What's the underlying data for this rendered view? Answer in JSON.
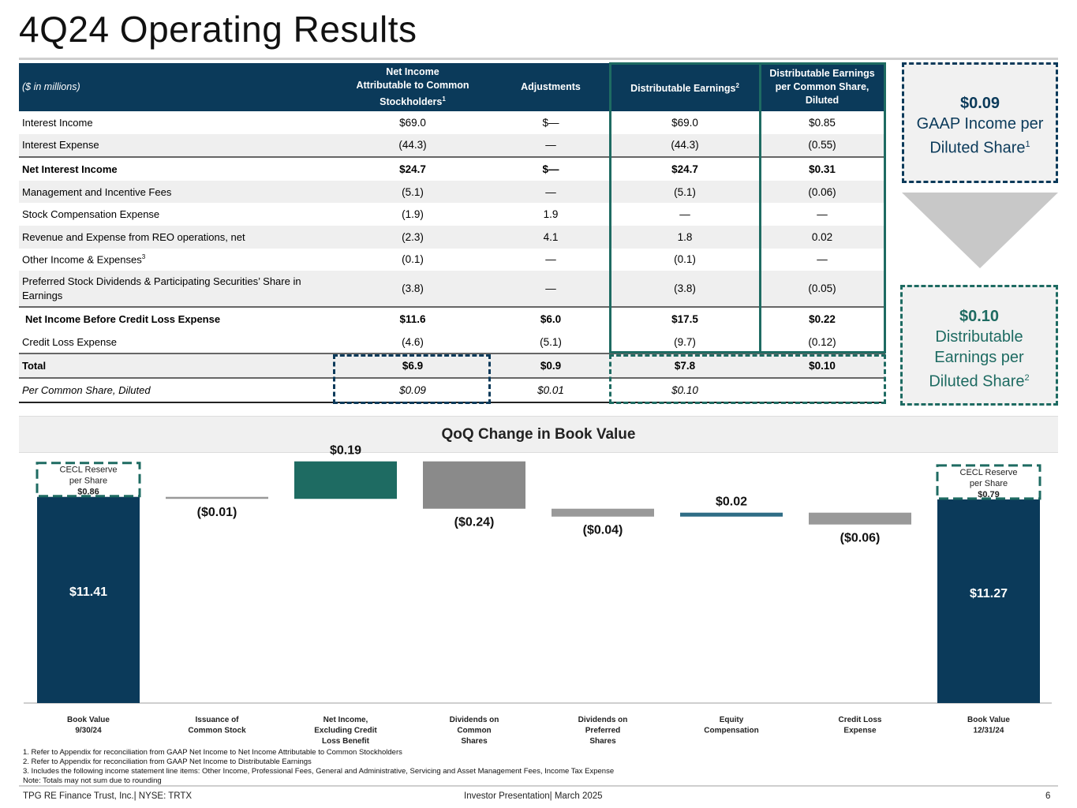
{
  "page": {
    "title": "4Q24 Operating Results",
    "page_number": "6",
    "footer_left": "TPG RE Finance Trust, Inc.| NYSE: TRTX",
    "footer_center": "Investor Presentation| March 2025"
  },
  "table": {
    "header_label": "($ in millions)",
    "col1_line1": "Net Income",
    "col1_line2": "Attributable to Common",
    "col1_line3": "Stockholders",
    "col1_sup": "1",
    "col2": "Adjustments",
    "col3": "Distributable Earnings",
    "col3_sup": "2",
    "col4_line1": "Distributable Earnings",
    "col4_line2": "per Common Share,",
    "col4_line3": "Diluted",
    "rows": [
      {
        "label": "Interest Income",
        "sup": "",
        "c1": "$69.0",
        "c2": "$—",
        "c3": "$69.0",
        "c4": "$0.85"
      },
      {
        "label": "Interest Expense",
        "sup": "",
        "c1": "(44.3)",
        "c2": "—",
        "c3": "(44.3)",
        "c4": "(0.55)"
      },
      {
        "label": "Net Interest Income",
        "sup": "",
        "c1": "$24.7",
        "c2": "$—",
        "c3": "$24.7",
        "c4": "$0.31"
      },
      {
        "label": "Management and Incentive Fees",
        "sup": "",
        "c1": "(5.1)",
        "c2": "—",
        "c3": "(5.1)",
        "c4": "(0.06)"
      },
      {
        "label": "Stock Compensation Expense",
        "sup": "",
        "c1": "(1.9)",
        "c2": "1.9",
        "c3": "—",
        "c4": "—"
      },
      {
        "label": "Revenue and Expense from REO operations, net",
        "sup": "",
        "c1": "(2.3)",
        "c2": "4.1",
        "c3": "1.8",
        "c4": "0.02"
      },
      {
        "label": "Other Income & Expenses",
        "sup": "3",
        "c1": "(0.1)",
        "c2": "—",
        "c3": "(0.1)",
        "c4": "—"
      },
      {
        "label": "Preferred Stock Dividends & Participating Securities’ Share in Earnings",
        "sup": "",
        "c1": "(3.8)",
        "c2": "—",
        "c3": "(3.8)",
        "c4": "(0.05)"
      },
      {
        "label": "Net Income Before Credit Loss Expense",
        "sup": "",
        "c1": "$11.6",
        "c2": "$6.0",
        "c3": "$17.5",
        "c4": "$0.22"
      },
      {
        "label": "Credit Loss Expense",
        "sup": "",
        "c1": "(4.6)",
        "c2": "(5.1)",
        "c3": "(9.7)",
        "c4": "(0.12)"
      },
      {
        "label": "Total",
        "sup": "",
        "c1": "$6.9",
        "c2": "$0.9",
        "c3": "$7.8",
        "c4": "$0.10"
      },
      {
        "label": "Per Common Share, Diluted",
        "sup": "",
        "c1": "$0.09",
        "c2": "$0.01",
        "c3": "$0.10",
        "c4": ""
      }
    ]
  },
  "callouts": {
    "gaap_value": "$0.09",
    "gaap_text1": "GAAP Income per",
    "gaap_text2": "Diluted Share",
    "gaap_sup": "1",
    "de_value": "$0.10",
    "de_text1": "Distributable",
    "de_text2": "Earnings per",
    "de_text3": "Diluted Share",
    "de_sup": "2"
  },
  "chart_data": {
    "type": "bar",
    "title": "QoQ Change in Book Value",
    "categories": [
      [
        "Book Value",
        "9/30/24"
      ],
      [
        "Issuance of",
        "Common Stock"
      ],
      [
        "Net Income,",
        "Excluding Credit",
        "Loss Benefit"
      ],
      [
        "Dividends on",
        "Common",
        "Shares"
      ],
      [
        "Dividends on",
        "Preferred",
        "Shares"
      ],
      [
        "Equity",
        "Compensation"
      ],
      [
        "Credit Loss",
        "Expense"
      ],
      [
        "Book Value",
        "12/31/24"
      ]
    ],
    "values": [
      11.41,
      -0.01,
      0.19,
      -0.24,
      -0.04,
      0.02,
      -0.06,
      11.27
    ],
    "labels": [
      "$11.41",
      "($0.01)",
      "$0.19",
      "($0.24)",
      "($0.04)",
      "$0.02",
      "($0.06)",
      "$11.27"
    ],
    "kinds": [
      "total",
      "delta",
      "delta",
      "delta",
      "delta",
      "delta",
      "delta",
      "total"
    ],
    "colors": {
      "total": "#0b3a5a",
      "increase": "#1e6b62",
      "decrease": "#8a8a8a",
      "neutral": "#999999",
      "increase_light": "#2f6d86"
    },
    "cecl": [
      {
        "line1": "CECL Reserve",
        "line2": "per Share",
        "value": "$0.86"
      },
      {
        "line1": "CECL Reserve",
        "line2": "per Share",
        "value": "$0.79"
      }
    ],
    "ylim": [
      0,
      12
    ]
  },
  "footnotes": [
    "1. Refer to Appendix for reconciliation from GAAP Net Income  to Net Income  Attributable to Common Stockholders",
    "2. Refer to Appendix for reconciliation from GAAP Net Income  to Distributable Earnings",
    "3. Includes the following income statement line items: Other Income, Professional Fees, General and Administrative, Servicing and Asset Management Fees, Income Tax Expense",
    "Note: Totals may not sum due to rounding"
  ]
}
